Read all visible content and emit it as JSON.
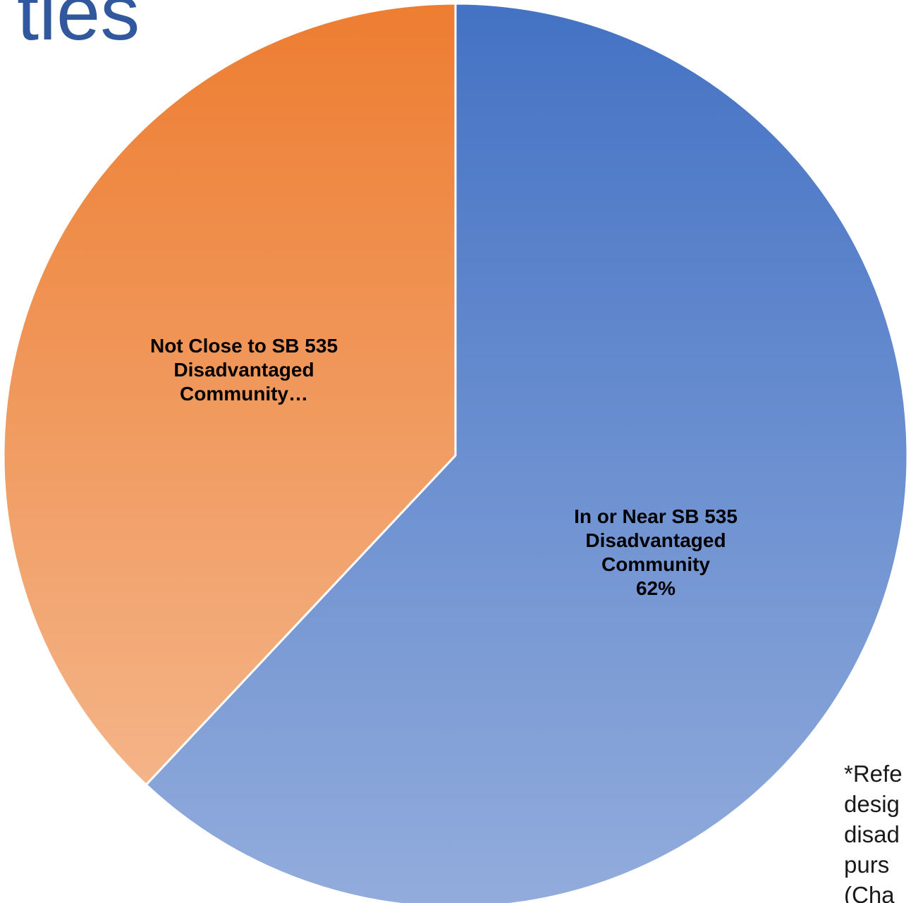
{
  "page": {
    "title_fragment": "ties"
  },
  "chart_data": {
    "type": "pie",
    "slices": [
      {
        "name": "In or Near SB 535 Disadvantaged Community",
        "value": 62,
        "label_lines": [
          "In or Near SB 535",
          "Disadvantaged",
          "Community",
          "62%"
        ],
        "color_top": "#4472c4",
        "color_bottom": "#92acdc"
      },
      {
        "name": "Not Close to SB 535 Disadvantaged Community",
        "value": 38,
        "label_lines": [
          "Not Close to SB 535",
          "Disadvantaged",
          "Community…"
        ],
        "color_top": "#ed7d31",
        "color_bottom": "#f4b488"
      }
    ],
    "start_angle_deg": 0,
    "direction": "clockwise"
  },
  "footnote": {
    "lines": [
      "*Refe",
      "desig",
      "disad",
      "purs",
      "(Cha"
    ]
  }
}
